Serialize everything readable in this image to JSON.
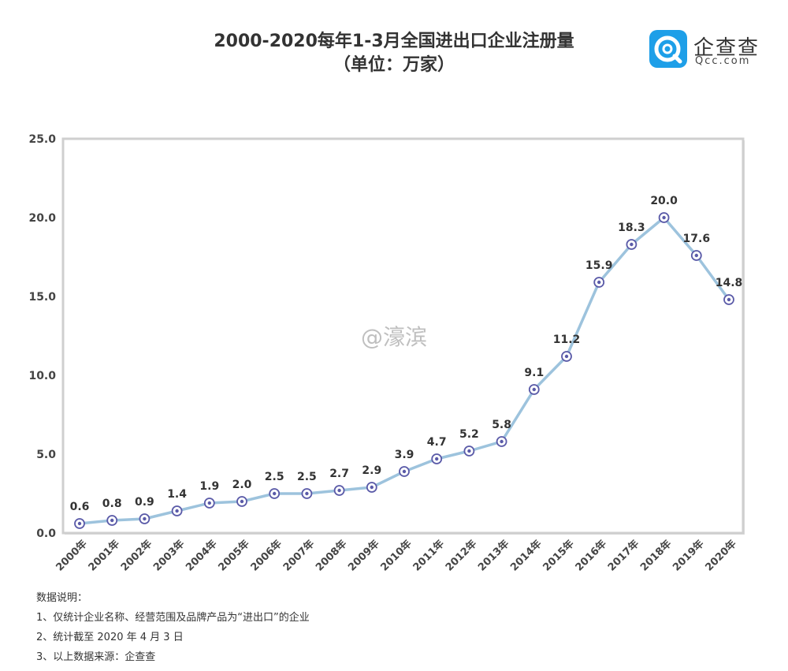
{
  "header": {
    "title_line1": "2000-2020每年1-3月全国进出口企业注册量",
    "title_line2": "（单位：万家）"
  },
  "logo": {
    "text": "企查查",
    "sub": "Qcc.com",
    "icon": "qcc-logo-icon",
    "color": "#1e9fe8"
  },
  "watermark": "@濠滨",
  "notes": {
    "heading": "数据说明：",
    "items": [
      "1、仅统计企业名称、经营范围及品牌产品为“进出口”的企业",
      "2、统计截至 2020 年 4 月 3 日",
      "3、以上数据来源：企查查"
    ]
  },
  "chart_data": {
    "type": "line",
    "title": "2000-2020每年1-3月全国进出口企业注册量（单位：万家）",
    "categories": [
      "2000年",
      "2001年",
      "2002年",
      "2003年",
      "2004年",
      "2005年",
      "2006年",
      "2007年",
      "2008年",
      "2009年",
      "2010年",
      "2011年",
      "2012年",
      "2013年",
      "2014年",
      "2015年",
      "2016年",
      "2017年",
      "2018年",
      "2019年",
      "2020年"
    ],
    "values": [
      0.6,
      0.8,
      0.9,
      1.4,
      1.9,
      2.0,
      2.5,
      2.5,
      2.7,
      2.9,
      3.9,
      4.7,
      5.2,
      5.8,
      9.1,
      11.2,
      15.9,
      18.3,
      20.0,
      17.6,
      14.8
    ],
    "value_labels": [
      "0.6",
      "0.8",
      "0.9",
      "1.4",
      "1.9",
      "2.0",
      "2.5",
      "2.5",
      "2.7",
      "2.9",
      "3.9",
      "4.7",
      "5.2",
      "5.8",
      "9.1",
      "11.2",
      "15.9",
      "18.3",
      "20.0",
      "17.6",
      "14.8"
    ],
    "yticks": [
      "0.0",
      "5.0",
      "10.0",
      "15.0",
      "20.0",
      "25.0"
    ],
    "ylim": [
      0,
      25
    ],
    "grid": false,
    "line_color": "#9dc3dd",
    "marker_color": "#5a5aa8"
  }
}
